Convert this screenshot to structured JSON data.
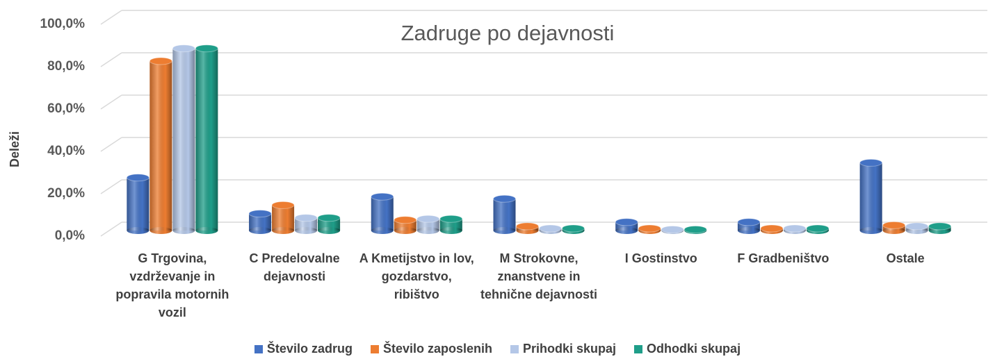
{
  "chart_data": {
    "type": "bar",
    "title": "Zadruge po dejavnosti",
    "y_label": "Deleži",
    "categories": [
      "G Trgovina, vzdrževanje in popravila motornih vozil",
      "C Predelovalne dejavnosti",
      "A Kmetijstvo in lov, gozdarstvo, ribištvo",
      "M Strokovne, znanstvene in tehnične dejavnosti",
      "I Gostinstvo",
      "F Gradbeništvo",
      "Ostale"
    ],
    "series": [
      {
        "name": "Število zadrug",
        "color": "#4472c4",
        "values": [
          25,
          8,
          16,
          15,
          4,
          4,
          32
        ]
      },
      {
        "name": "Število zaposlenih",
        "color": "#ed7d31",
        "values": [
          80,
          12,
          5,
          2,
          1,
          1,
          2.5
        ]
      },
      {
        "name": "Prihodki skupaj",
        "color": "#b4c7e7",
        "values": [
          86,
          6,
          5.5,
          1,
          0.5,
          1,
          2
        ]
      },
      {
        "name": "Odhodki skupaj",
        "color": "#1f9e89",
        "values": [
          86,
          6,
          5.5,
          1,
          0.5,
          1,
          2
        ]
      }
    ],
    "ylim": [
      0,
      100
    ],
    "yticks": [
      {
        "value": 0,
        "label": "0,0%"
      },
      {
        "value": 20,
        "label": "20,0%"
      },
      {
        "value": 40,
        "label": "40,0%"
      },
      {
        "value": 60,
        "label": "60,0%"
      },
      {
        "value": 80,
        "label": "80,0%"
      },
      {
        "value": 100,
        "label": "100,0%"
      }
    ],
    "grid": true,
    "legend": "bottom"
  }
}
